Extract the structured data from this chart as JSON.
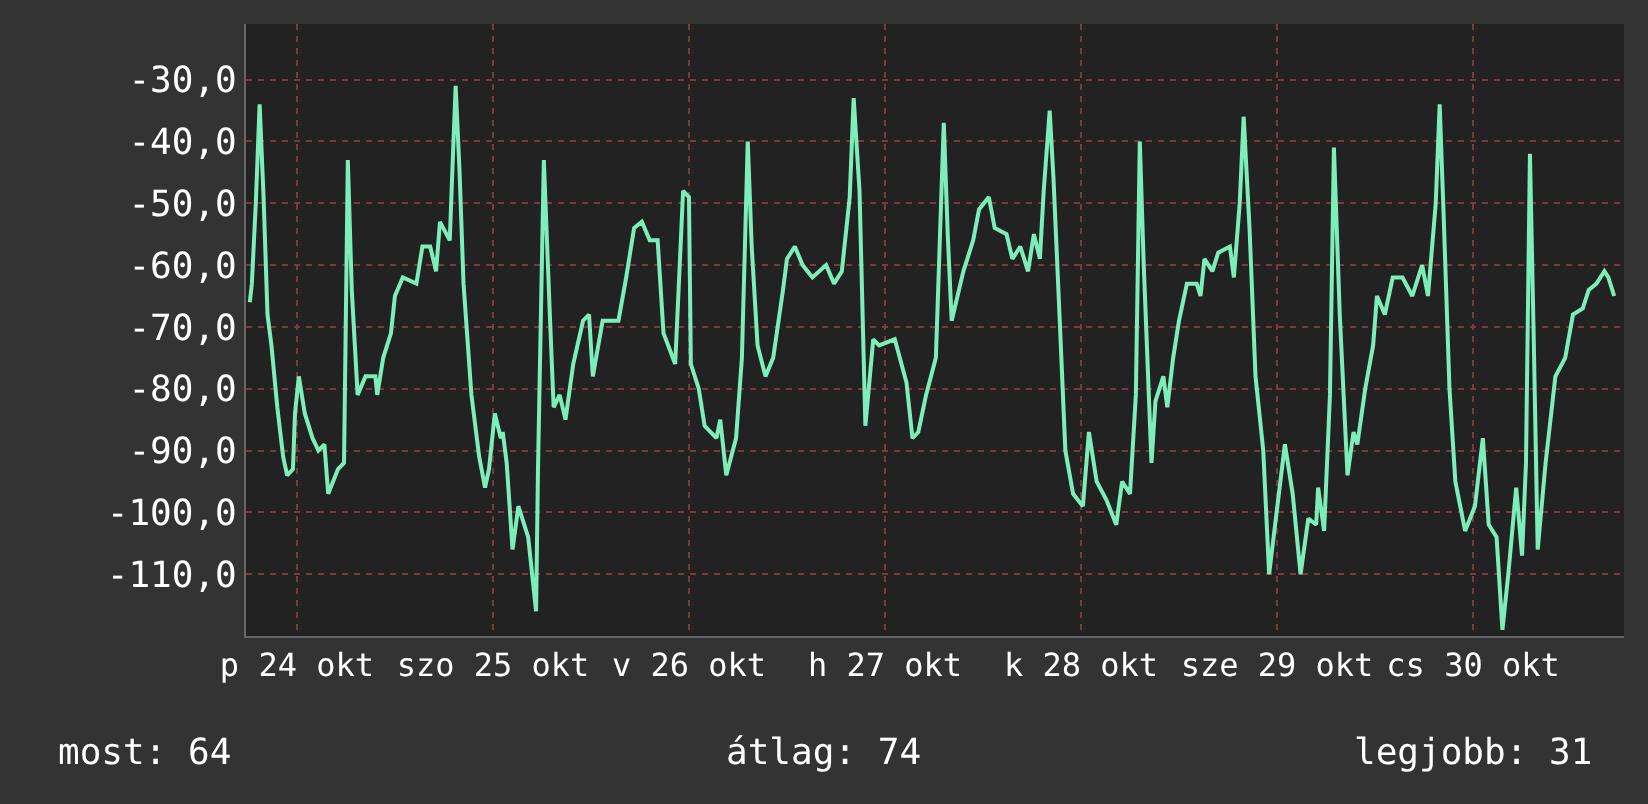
{
  "chart_data": {
    "type": "line",
    "x": [
      "--10-24T06:14",
      "--10-24T06:29",
      "--10-24T06:58",
      "--10-24T07:26",
      "--10-24T07:55",
      "--10-24T08:24",
      "--10-24T08:53",
      "--10-24T09:36",
      "--10-24T10:19",
      "--10-24T10:48",
      "--10-24T11:31",
      "--10-24T11:46",
      "--10-24T12:14",
      "--10-24T12:58",
      "--10-24T13:55",
      "--10-24T14:38",
      "--10-24T15:22",
      "--10-24T15:50",
      "--10-24T17:02",
      "--10-24T17:46",
      "--10-24T18:14",
      "--10-24T18:43",
      "--10-24T19:26",
      "--10-24T20:24",
      "--10-24T21:36",
      "--10-24T21:50",
      "--10-24T22:34",
      "--10-24T23:31",
      "--10-25T00:00",
      "--10-25T00:58",
      "--10-25T02:38",
      "--10-25T03:22",
      "--10-25T04:19",
      "--10-25T05:02",
      "--10-25T05:31",
      "--10-25T06:43",
      "--10-25T06:58",
      "--10-25T07:26",
      "--10-25T07:55",
      "--10-25T08:24",
      "--10-25T09:22",
      "--10-25T10:19",
      "--10-25T11:02",
      "--10-25T11:31",
      "--10-25T12:14",
      "--10-25T12:58",
      "--10-25T13:12",
      "--10-25T13:41",
      "--10-25T14:24",
      "--10-25T15:07",
      "--10-25T16:19",
      "--10-25T17:17",
      "--10-25T17:31",
      "--10-25T18:14",
      "--10-25T18:58",
      "--10-25T19:26",
      "--10-25T20:10",
      "--10-25T20:53",
      "--10-25T21:50",
      "--10-25T23:02",
      "--10-25T23:46",
      "--10-26T00:14",
      "--10-26T01:26",
      "--10-26T03:22",
      "--10-26T04:19",
      "--10-26T05:17",
      "--10-26T06:14",
      "--10-26T07:12",
      "--10-26T08:10",
      "--10-26T08:53",
      "--10-26T10:19",
      "--10-26T11:17",
      "--10-26T12:00",
      "--10-26T12:14",
      "--10-26T13:12",
      "--10-26T13:55",
      "--10-26T15:22",
      "--10-26T15:50",
      "--10-26T16:34",
      "--10-26T17:46",
      "--10-26T18:29",
      "--10-26T19:12",
      "--10-26T19:41",
      "--10-26T20:24",
      "--10-26T21:22",
      "--10-26T22:19",
      "--10-26T23:31",
      "--10-27T00:00",
      "--10-27T00:58",
      "--10-27T01:55",
      "--10-27T03:07",
      "--10-27T04:48",
      "--10-27T05:46",
      "--10-27T06:43",
      "--10-27T07:41",
      "--10-27T08:10",
      "--10-27T08:53",
      "--10-27T09:36",
      "--10-27T10:34",
      "--10-27T11:17",
      "--10-27T13:12",
      "--10-27T14:38",
      "--10-27T15:22",
      "--10-27T16:05",
      "--10-27T17:02",
      "--10-27T18:14",
      "--10-27T19:12",
      "--10-27T19:41",
      "--10-27T20:10",
      "--10-27T21:36",
      "--10-27T22:48",
      "--10-27T23:31",
      "--10-28T00:43",
      "--10-28T01:26",
      "--10-28T02:53",
      "--10-28T03:36",
      "--10-28T04:34",
      "--10-28T05:31",
      "--10-28T06:14",
      "--10-28T06:58",
      "--10-28T07:26",
      "--10-28T08:10",
      "--10-28T08:38",
      "--10-28T09:22",
      "--10-28T10:05",
      "--10-28T11:02",
      "--10-28T12:14",
      "--10-28T12:58",
      "--10-28T13:55",
      "--10-28T15:07",
      "--10-28T16:19",
      "--10-28T17:02",
      "--10-28T18:00",
      "--10-28T18:43",
      "--10-28T19:12",
      "--10-28T19:41",
      "--10-28T20:38",
      "--10-28T21:07",
      "--10-28T22:05",
      "--10-28T22:34",
      "--10-28T23:17",
      "--10-29T00:00",
      "--10-29T00:58",
      "--10-29T02:10",
      "--10-29T02:38",
      "--10-29T03:07",
      "--10-29T04:05",
      "--10-29T04:48",
      "--10-29T06:14",
      "--10-29T06:43",
      "--10-29T07:26",
      "--10-29T07:55",
      "--10-29T08:38",
      "--10-29T09:22",
      "--10-29T10:19",
      "--10-29T11:02",
      "--10-29T11:46",
      "--10-29T12:58",
      "--10-29T13:55",
      "--10-29T14:53",
      "--10-29T15:50",
      "--10-29T16:48",
      "--10-29T17:02",
      "--10-29T17:46",
      "--10-29T18:29",
      "--10-29T18:58",
      "--10-29T19:41",
      "--10-29T20:38",
      "--10-29T21:22",
      "--10-29T21:50",
      "--10-29T22:48",
      "--10-29T23:46",
      "--10-30T00:14",
      "--10-30T01:12",
      "--10-30T02:10",
      "--10-30T03:22",
      "--10-30T04:34",
      "--10-30T05:46",
      "--10-30T06:29",
      "--10-30T07:26",
      "--10-30T07:55",
      "--10-30T08:24",
      "--10-30T09:07",
      "--10-30T09:50",
      "--10-30T11:02",
      "--10-30T12:14",
      "--10-30T13:12",
      "--10-30T13:55",
      "--10-30T14:53",
      "--10-30T15:36",
      "--10-30T16:19",
      "--10-30T17:17",
      "--10-30T18:00",
      "--10-30T18:29",
      "--10-30T18:58",
      "--10-30T19:26",
      "--10-30T19:55",
      "--10-30T20:53",
      "--10-30T22:05",
      "--10-30T23:17",
      "--10-31T00:14",
      "--10-31T01:26",
      "--10-31T02:10",
      "--10-31T03:07",
      "--10-31T04:05",
      "--10-31T04:34",
      "--10-31T05:17"
    ],
    "series": [
      {
        "color": "#7deeb9",
        "values": [
          -66,
          -63,
          -50,
          -34,
          -49,
          -68,
          -73,
          -83,
          -91,
          -94,
          -93,
          -84,
          -78,
          -84,
          -88,
          -90,
          -89,
          -97,
          -93,
          -92,
          -43,
          -64,
          -81,
          -78,
          -78,
          -81,
          -75,
          -71,
          -65,
          -62,
          -63,
          -57,
          -57,
          -61,
          -53,
          -56,
          -47,
          -31,
          -45,
          -63,
          -81,
          -91,
          -96,
          -93,
          -84,
          -88,
          -87,
          -92,
          -106,
          -99,
          -104,
          -116,
          -93,
          -43,
          -68,
          -83,
          -81,
          -85,
          -76,
          -69,
          -68,
          -78,
          -69,
          -69,
          -62,
          -54,
          -53,
          -56,
          -56,
          -71,
          -76,
          -48,
          -49,
          -76,
          -80,
          -86,
          -88,
          -85,
          -94,
          -88,
          -75,
          -40,
          -57,
          -73,
          -78,
          -75,
          -64,
          -59,
          -57,
          -60,
          -62,
          -60,
          -63,
          -61,
          -49,
          -33,
          -48,
          -86,
          -72,
          -73,
          -72,
          -79,
          -88,
          -87,
          -81,
          -75,
          -37,
          -55,
          -69,
          -61,
          -56,
          -51,
          -49,
          -54,
          -55,
          -59,
          -57,
          -61,
          -55,
          -59,
          -48,
          -35,
          -46,
          -68,
          -90,
          -97,
          -99,
          -87,
          -95,
          -98,
          -102,
          -95,
          -97,
          -81,
          -40,
          -60,
          -92,
          -82,
          -78,
          -83,
          -75,
          -69,
          -63,
          -63,
          -65,
          -59,
          -61,
          -58,
          -57,
          -62,
          -50,
          -36,
          -54,
          -78,
          -90,
          -110,
          -102,
          -89,
          -97,
          -110,
          -101,
          -102,
          -96,
          -103,
          -81,
          -41,
          -68,
          -94,
          -87,
          -89,
          -80,
          -73,
          -65,
          -68,
          -62,
          -62,
          -65,
          -60,
          -65,
          -50,
          -34,
          -52,
          -80,
          -95,
          -103,
          -99,
          -88,
          -102,
          -104,
          -119,
          -110,
          -96,
          -107,
          -92,
          -42,
          -72,
          -106,
          -92,
          -78,
          -75,
          -68,
          -67,
          -64,
          -63,
          -61,
          -62,
          -65
        ]
      }
    ],
    "xlim": [
      "--10-24T05:46",
      "--10-31T06:29"
    ],
    "ylim": [
      -120,
      -21
    ],
    "xticks": [
      {
        "value": "--10-24T12:00",
        "label": "p 24 okt"
      },
      {
        "value": "--10-25T12:00",
        "label": "szo 25 okt"
      },
      {
        "value": "--10-26T12:00",
        "label": "v 26 okt"
      },
      {
        "value": "--10-27T12:00",
        "label": "h 27 okt"
      },
      {
        "value": "--10-28T12:00",
        "label": "k 28 okt"
      },
      {
        "value": "--10-29T12:00",
        "label": "sze 29 okt"
      },
      {
        "value": "--10-30T12:00",
        "label": "cs 30 okt"
      }
    ],
    "yticks": [
      {
        "value": -30,
        "label": "-30,0"
      },
      {
        "value": -40,
        "label": "-40,0"
      },
      {
        "value": -50,
        "label": "-50,0"
      },
      {
        "value": -60,
        "label": "-60,0"
      },
      {
        "value": -70,
        "label": "-70,0"
      },
      {
        "value": -80,
        "label": "-80,0"
      },
      {
        "value": -90,
        "label": "-90,0"
      },
      {
        "value": -100,
        "label": "-100,0"
      },
      {
        "value": -110,
        "label": "-110,0"
      }
    ],
    "grid": true,
    "annotations": [
      "most: 64",
      "átlag: 74",
      "legjobb: 31"
    ]
  }
}
